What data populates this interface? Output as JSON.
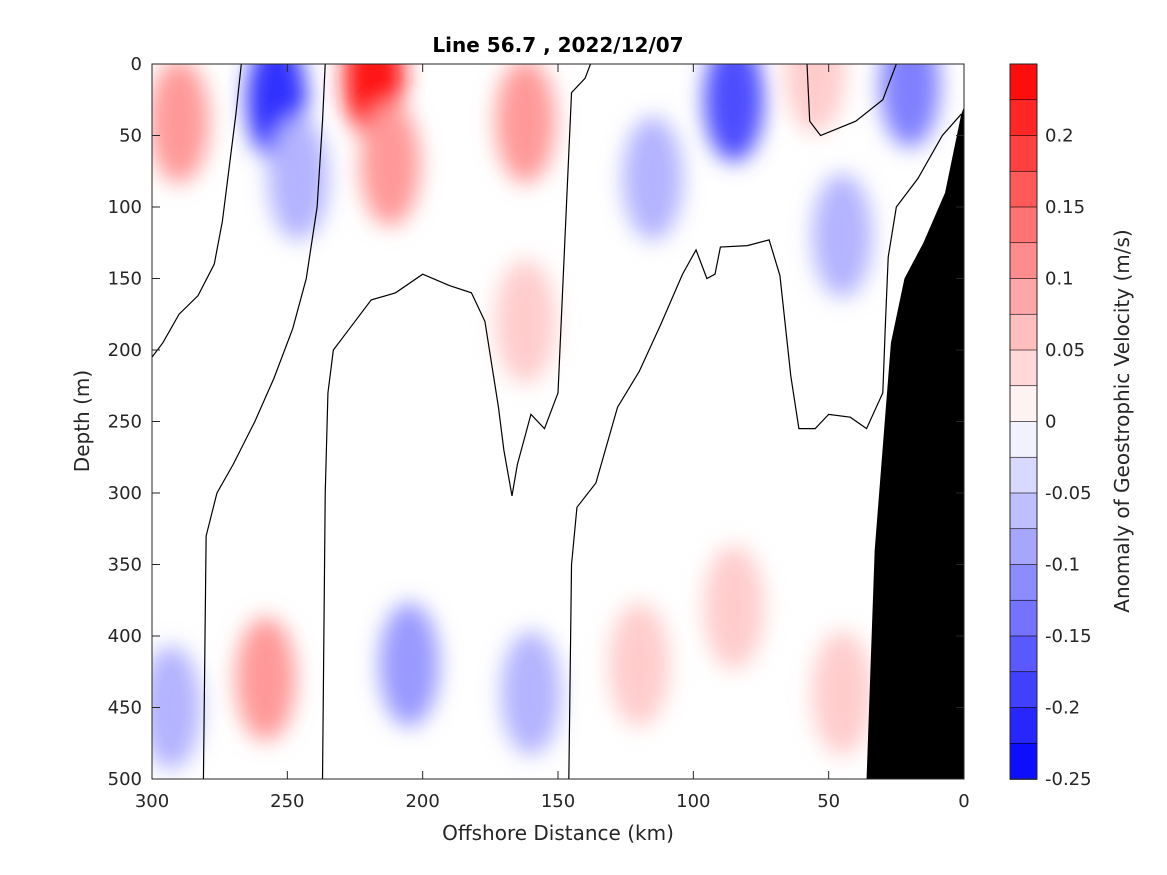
{
  "chart_data": {
    "type": "contour",
    "title": "Line 56.7 , 2022/12/07",
    "xlabel": "Offshore Distance (km)",
    "ylabel": "Depth (m)",
    "xlim": [
      300,
      0
    ],
    "ylim": [
      500,
      0
    ],
    "x_ticks": [
      "300",
      "250",
      "200",
      "150",
      "100",
      "50",
      "0"
    ],
    "y_ticks": [
      "0",
      "50",
      "100",
      "150",
      "200",
      "250",
      "300",
      "350",
      "400",
      "450",
      "500"
    ],
    "colorbar": {
      "label": "Anomaly of Geostrophic Velocity (m/s)",
      "range": [
        -0.25,
        0.25
      ],
      "step": 0.025,
      "tick_labels": [
        "0.2",
        "0.15",
        "0.1",
        "0.05",
        "0",
        "-0.05",
        "-0.1",
        "-0.15",
        "-0.2",
        "-0.25"
      ],
      "positive_color": "#ff0000",
      "negative_color": "#0000ff",
      "neutral_color": "#ffffff"
    },
    "zero_contour_lines": [
      [
        [
          300,
          205
        ],
        [
          296,
          195
        ],
        [
          290,
          175
        ],
        [
          283,
          162
        ],
        [
          277,
          140
        ],
        [
          274,
          110
        ],
        [
          272,
          80
        ],
        [
          269,
          35
        ],
        [
          267,
          0
        ]
      ],
      [
        [
          281,
          500
        ],
        [
          280,
          330
        ],
        [
          276,
          300
        ],
        [
          270,
          280
        ],
        [
          262,
          250
        ],
        [
          255,
          220
        ],
        [
          248,
          185
        ],
        [
          243,
          150
        ],
        [
          239,
          100
        ],
        [
          237,
          40
        ],
        [
          236,
          0
        ]
      ],
      [
        [
          237,
          500
        ],
        [
          236,
          300
        ],
        [
          235,
          230
        ],
        [
          233,
          200
        ],
        [
          227,
          185
        ],
        [
          219,
          165
        ],
        [
          210,
          160
        ],
        [
          200,
          147
        ],
        [
          190,
          155
        ],
        [
          182,
          160
        ],
        [
          177,
          180
        ],
        [
          172,
          240
        ],
        [
          170,
          270
        ],
        [
          167,
          302
        ],
        [
          165,
          280
        ],
        [
          160,
          245
        ],
        [
          155,
          255
        ],
        [
          150,
          230
        ],
        [
          145,
          20
        ],
        [
          140,
          10
        ],
        [
          138,
          0
        ]
      ],
      [
        [
          146,
          500
        ],
        [
          145,
          350
        ],
        [
          143,
          310
        ],
        [
          136,
          293
        ],
        [
          128,
          240
        ],
        [
          120,
          215
        ],
        [
          112,
          182
        ],
        [
          104,
          147
        ],
        [
          99,
          130
        ],
        [
          95,
          150
        ],
        [
          92,
          147
        ],
        [
          90,
          128
        ],
        [
          80,
          127
        ],
        [
          72,
          123
        ],
        [
          68,
          148
        ],
        [
          64,
          218
        ],
        [
          61,
          255
        ],
        [
          55,
          255
        ],
        [
          50,
          245
        ],
        [
          42,
          247
        ],
        [
          36,
          255
        ],
        [
          30,
          230
        ],
        [
          29,
          180
        ],
        [
          28,
          135
        ],
        [
          25,
          100
        ],
        [
          17,
          80
        ],
        [
          8,
          50
        ],
        [
          1,
          35
        ]
      ],
      [
        [
          58,
          0
        ],
        [
          57,
          40
        ],
        [
          53,
          50
        ],
        [
          40,
          40
        ],
        [
          30,
          25
        ],
        [
          25,
          0
        ]
      ]
    ],
    "blobs": [
      {
        "x": 290,
        "y": 40,
        "value": 0.1
      },
      {
        "x": 254,
        "y": 25,
        "value": -0.2
      },
      {
        "x": 246,
        "y": 80,
        "value": -0.075
      },
      {
        "x": 218,
        "y": 10,
        "value": 0.225
      },
      {
        "x": 212,
        "y": 70,
        "value": 0.1
      },
      {
        "x": 162,
        "y": 40,
        "value": 0.1
      },
      {
        "x": 162,
        "y": 180,
        "value": 0.05
      },
      {
        "x": 115,
        "y": 80,
        "value": -0.075
      },
      {
        "x": 85,
        "y": 25,
        "value": -0.175
      },
      {
        "x": 45,
        "y": 120,
        "value": -0.075
      },
      {
        "x": 20,
        "y": 15,
        "value": -0.125
      },
      {
        "x": 55,
        "y": 5,
        "value": 0.05
      },
      {
        "x": 258,
        "y": 430,
        "value": 0.1
      },
      {
        "x": 205,
        "y": 420,
        "value": -0.1
      },
      {
        "x": 160,
        "y": 440,
        "value": -0.075
      },
      {
        "x": 293,
        "y": 450,
        "value": -0.075
      },
      {
        "x": 85,
        "y": 380,
        "value": 0.05
      },
      {
        "x": 120,
        "y": 420,
        "value": 0.05
      },
      {
        "x": 45,
        "y": 440,
        "value": 0.05
      }
    ],
    "bathymetry": [
      [
        36,
        500
      ],
      [
        33,
        340
      ],
      [
        27,
        195
      ],
      [
        22,
        150
      ],
      [
        15,
        125
      ],
      [
        7,
        90
      ],
      [
        1,
        35
      ],
      [
        0,
        30
      ],
      [
        0,
        500
      ]
    ]
  }
}
